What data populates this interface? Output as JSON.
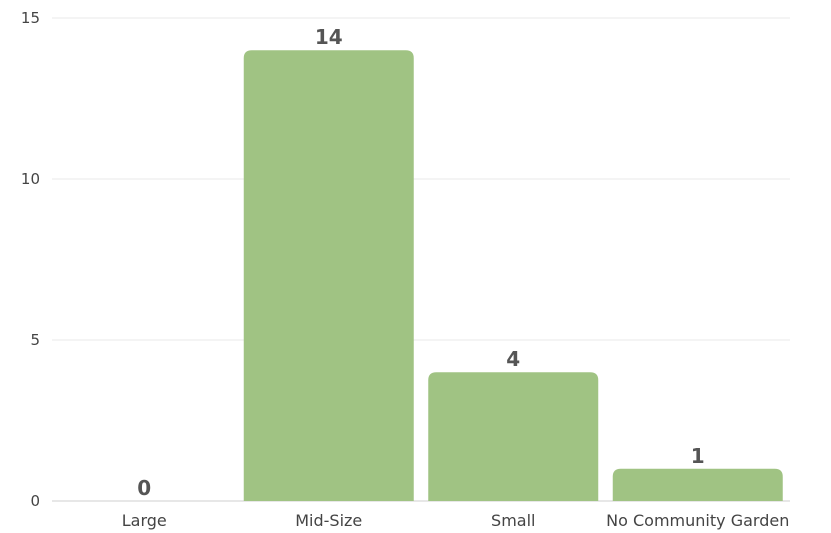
{
  "chart_data": {
    "type": "bar",
    "categories": [
      "Large",
      "Mid-Size",
      "Small",
      "No Community Garden"
    ],
    "values": [
      0,
      14,
      4,
      1
    ],
    "ylim": [
      0,
      15
    ],
    "yticks": [
      0,
      5,
      10,
      15
    ],
    "grid": true,
    "bar_color": "#a0c383",
    "data_labels": true
  }
}
